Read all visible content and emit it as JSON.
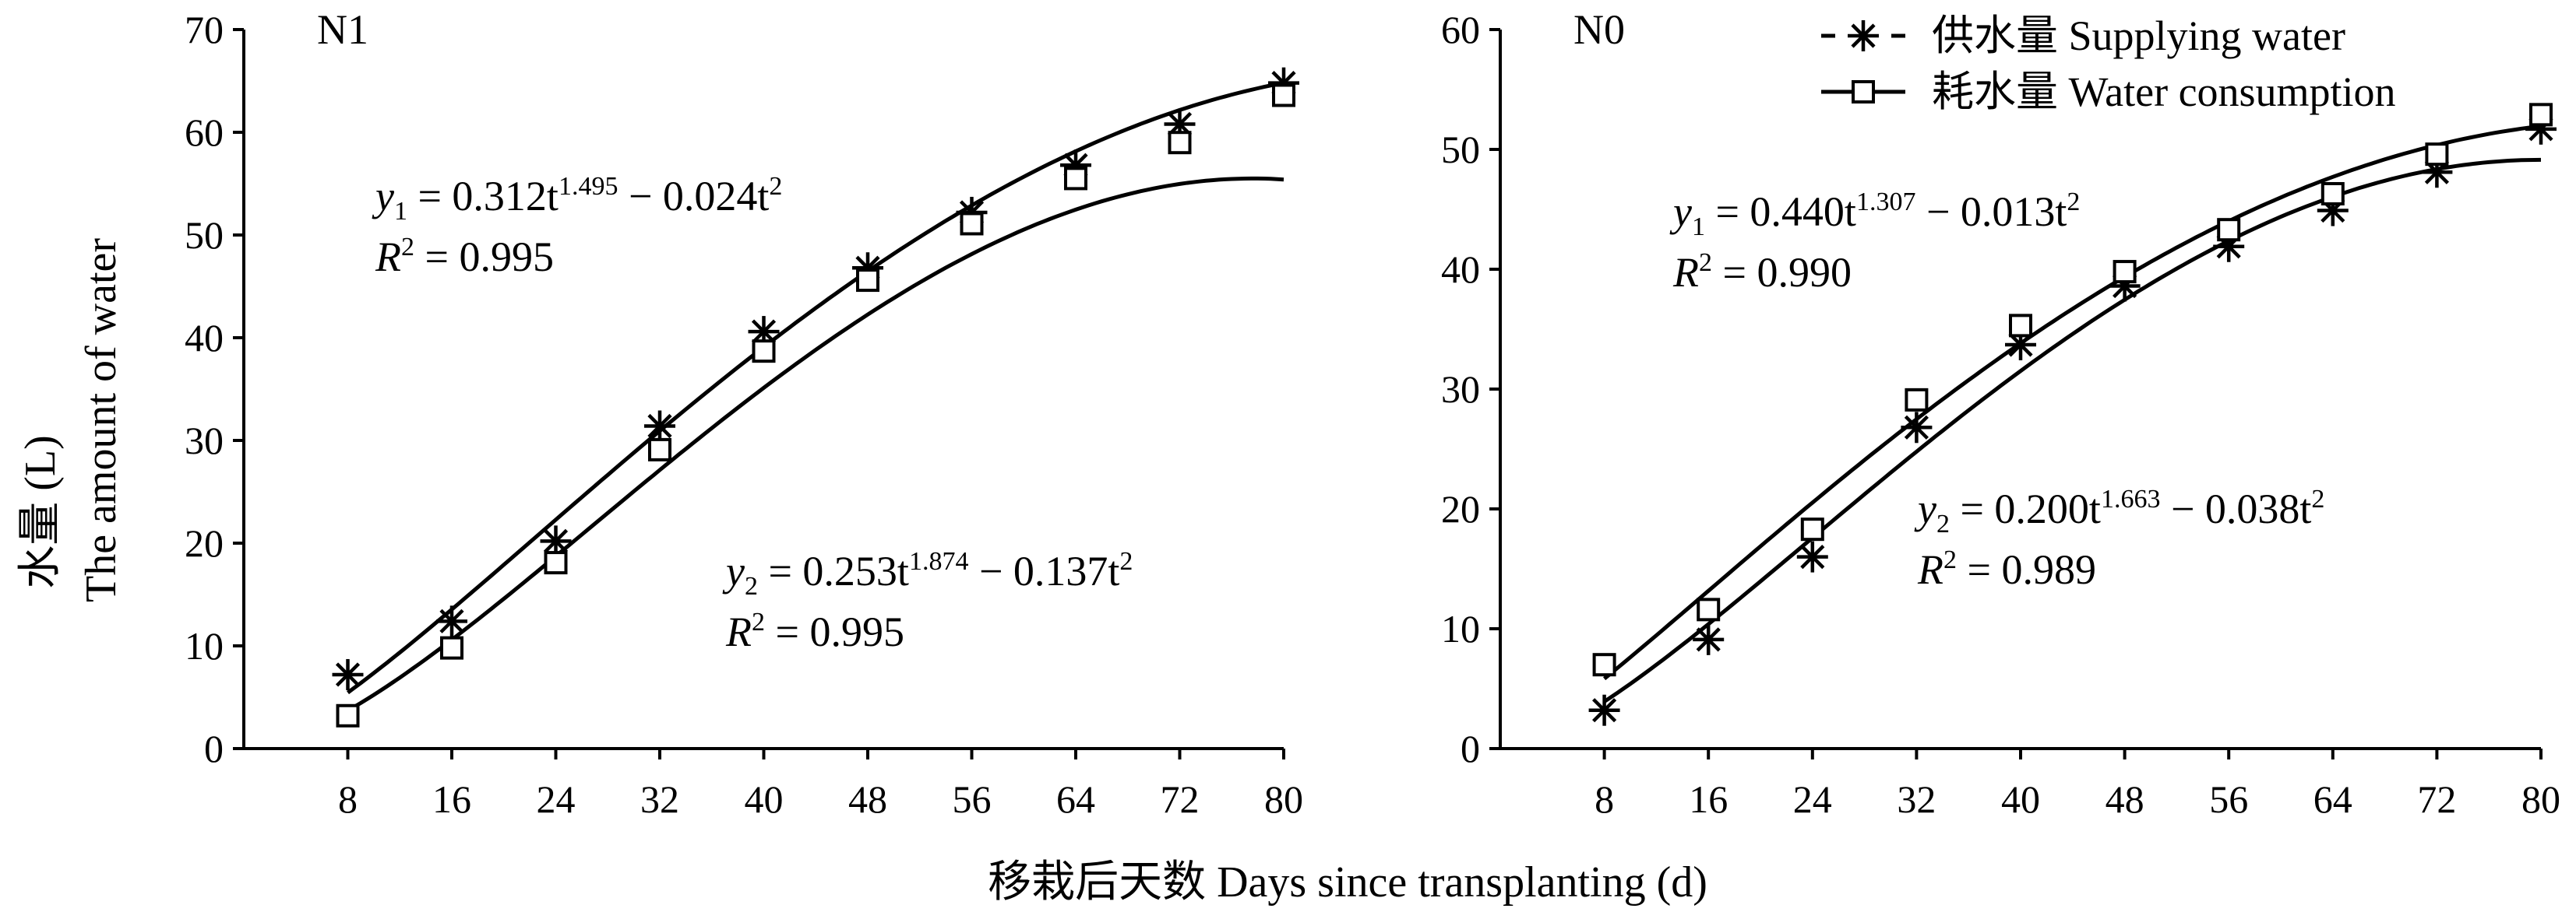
{
  "chart_data": [
    {
      "type": "scatter",
      "panel_label": "N1",
      "x": [
        8,
        16,
        24,
        32,
        40,
        48,
        56,
        64,
        72,
        80
      ],
      "xlim": [
        0,
        80
      ],
      "ylim": [
        0,
        70
      ],
      "xticks": [
        "8",
        "16",
        "24",
        "32",
        "40",
        "48",
        "56",
        "64",
        "72",
        "80"
      ],
      "yticks": [
        "0",
        "10",
        "20",
        "30",
        "40",
        "50",
        "60",
        "70"
      ],
      "series": [
        {
          "name": "供水量 Supplying water",
          "marker": "asterisk",
          "values": [
            7.2,
            12.4,
            20.2,
            31.4,
            40.6,
            46.8,
            52.2,
            56.8,
            60.8,
            64.8
          ],
          "fit": {
            "a": 0.312,
            "b": 1.495,
            "c": 0.024
          }
        },
        {
          "name": "耗水量 Water consumption",
          "marker": "square",
          "values": [
            3.2,
            9.8,
            18.1,
            29.1,
            38.7,
            45.6,
            51.1,
            55.5,
            59.0,
            63.6
          ],
          "fit": {
            "a": 0.253,
            "b": 1.874,
            "c": 0.137
          }
        }
      ],
      "equations": [
        {
          "var": "y",
          "sub": "1",
          "lhs": " = 0.312t",
          "sup1": "1.495",
          "mid": " − 0.024t",
          "sup2": "2",
          "r2_label": "R",
          "r2_sup": "2",
          "r2_value": " = 0.995"
        },
        {
          "var": "y",
          "sub": "2",
          "lhs": " = 0.253t",
          "sup1": "1.874",
          "mid": " − 0.137t",
          "sup2": "2",
          "r2_label": "R",
          "r2_sup": "2",
          "r2_value": " = 0.995"
        }
      ]
    },
    {
      "type": "scatter",
      "panel_label": "N0",
      "x": [
        8,
        16,
        24,
        32,
        40,
        48,
        56,
        64,
        72,
        80
      ],
      "xlim": [
        0,
        80
      ],
      "ylim": [
        0,
        60
      ],
      "xticks": [
        "8",
        "16",
        "24",
        "32",
        "40",
        "48",
        "56",
        "64",
        "72",
        "80"
      ],
      "yticks": [
        "0",
        "10",
        "20",
        "30",
        "40",
        "50",
        "60"
      ],
      "series": [
        {
          "name": "供水量 Supplying water",
          "marker": "asterisk",
          "values": [
            3.2,
            9.1,
            16.0,
            26.8,
            33.7,
            38.6,
            41.9,
            44.9,
            48.1,
            51.7
          ],
          "fit": {
            "a": 0.2,
            "b": 1.663,
            "c": 0.038
          }
        },
        {
          "name": "耗水量 Water consumption",
          "marker": "square",
          "values": [
            7.0,
            11.6,
            18.3,
            29.1,
            35.3,
            39.8,
            43.3,
            46.3,
            49.6,
            52.9
          ],
          "fit": {
            "a": 0.44,
            "b": 1.307,
            "c": 0.013
          }
        }
      ],
      "equations": [
        {
          "var": "y",
          "sub": "1",
          "lhs": " = 0.440t",
          "sup1": "1.307",
          "mid": " − 0.013t",
          "sup2": "2",
          "r2_label": "R",
          "r2_sup": "2",
          "r2_value": " = 0.990"
        },
        {
          "var": "y",
          "sub": "2",
          "lhs": " = 0.200t",
          "sup1": "1.663",
          "mid": " − 0.038t",
          "sup2": "2",
          "r2_label": "R",
          "r2_sup": "2",
          "r2_value": " = 0.989"
        }
      ]
    }
  ],
  "ylabel": {
    "line1": "水量 (L)",
    "line2": "The amount of water"
  },
  "xlabel": "移栽后天数  Days since transplanting (d)",
  "legend": {
    "supply": "供水量 Supplying water",
    "consume": "耗水量 Water consumption"
  }
}
